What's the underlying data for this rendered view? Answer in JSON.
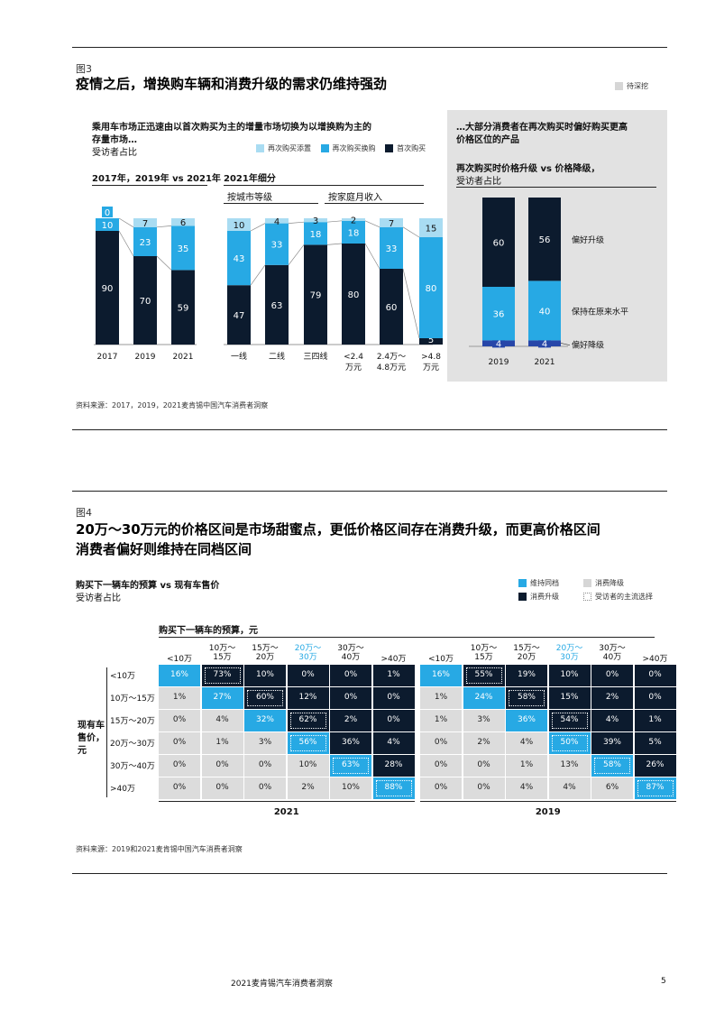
{
  "colors": {
    "light": "#a9dcf2",
    "mid": "#27a9e4",
    "dark": "#0c1b2e",
    "gray": "#dcdcdc",
    "navy": "#2746a8"
  },
  "fig3": {
    "label": "图3",
    "title": "疫情之后，增换购车辆和消费升级的需求仍维持强劲",
    "tag": "待深挖",
    "left": {
      "heading_line1": "乘用车市场正迅速由以首次购买为主的增量市场切换为以增换购为主的",
      "heading_line2": "存量市场…",
      "subheading": "受访者占比",
      "legend": [
        "再次购买添置",
        "再次购买换购",
        "首次购买"
      ],
      "group1_title": "2017年，2019年 vs 2021年",
      "group2_title": "2021年细分",
      "sub_city": "按城市等级",
      "sub_income": "按家庭月收入"
    },
    "right": {
      "heading_line1": "…大部分消费者在再次购买时偏好购买更高",
      "heading_line2": "价格区位的产品",
      "sub_line1": "再次购买时价格升级 vs 价格降级，",
      "sub_line2": "受访者占比",
      "labels": [
        "偏好升级",
        "保持在原来水平",
        "偏好降级"
      ]
    },
    "source": "资料来源：2017，2019，2021麦肯锡中国汽车消费者洞察"
  },
  "fig4": {
    "label": "图4",
    "title_line1": "20万～30万元的价格区间是市场甜蜜点，更低价格区间存在消费升级，而更高价格区间",
    "title_line2": "消费者偏好则维持在同档区间",
    "heading": "购买下一辆车的预算 vs 现有车售价",
    "subheading": "受访者占比",
    "legend": [
      "维持同档",
      "消费降级",
      "消费升级",
      "受访者的主流选择"
    ],
    "budget_title": "购买下一辆车的预算，元",
    "row_axis_label": [
      "现有车",
      "售价，",
      "元"
    ],
    "col_heads": [
      [
        "<10万",
        ""
      ],
      [
        "10万～",
        "15万"
      ],
      [
        "15万～",
        "20万"
      ],
      [
        "20万～",
        "30万"
      ],
      [
        "30万～",
        "40万"
      ],
      [
        ">40万",
        ""
      ]
    ],
    "row_heads": [
      "<10万",
      "10万～15万",
      "15万～20万",
      "20万～30万",
      "30万～40万",
      ">40万"
    ],
    "panel1_year": "2021",
    "panel2_year": "2019",
    "source": "资料来源：2019和2021麦肯锡中国汽车消费者洞察"
  },
  "footer": {
    "text": "2021麦肯锡汽车消费者洞察",
    "page": "5"
  },
  "chart_data": [
    {
      "type": "bar",
      "title": "2017年，2019年 vs 2021年",
      "stacked": true,
      "categories": [
        "2017",
        "2019",
        "2021"
      ],
      "series": [
        {
          "name": "首次购买",
          "values": [
            90,
            70,
            59
          ]
        },
        {
          "name": "再次购买换购",
          "values": [
            10,
            23,
            35
          ]
        },
        {
          "name": "再次购买添置",
          "values": [
            0,
            7,
            6
          ]
        }
      ]
    },
    {
      "type": "bar",
      "title": "2021年细分",
      "stacked": true,
      "categories": [
        "一线",
        "二线",
        "三四线",
        "<2.4万元",
        "2.4万～4.8万元",
        ">4.8万元"
      ],
      "series": [
        {
          "name": "首次购买",
          "values": [
            47,
            63,
            79,
            80,
            60,
            5
          ]
        },
        {
          "name": "再次购买换购",
          "values": [
            43,
            33,
            18,
            18,
            33,
            80
          ]
        },
        {
          "name": "再次购买添置",
          "values": [
            10,
            4,
            3,
            2,
            7,
            15
          ]
        }
      ]
    },
    {
      "type": "bar",
      "title": "再次购买时价格升级 vs 价格降级，",
      "stacked": true,
      "categories": [
        "2019",
        "2021"
      ],
      "series": [
        {
          "name": "偏好降级",
          "values": [
            4,
            4
          ]
        },
        {
          "name": "保持在原来水平",
          "values": [
            36,
            40
          ]
        },
        {
          "name": "偏好升级",
          "values": [
            60,
            56
          ]
        }
      ]
    },
    {
      "type": "heatmap",
      "title": "2021",
      "rows": [
        "<10万",
        "10万～15万",
        "15万～20万",
        "20万～30万",
        "30万～40万",
        ">40万"
      ],
      "columns": [
        "<10万",
        "10万～15万",
        "15万～20万",
        "20万～30万",
        "30万～40万",
        ">40万"
      ],
      "values": [
        [
          16,
          73,
          10,
          0,
          0,
          1
        ],
        [
          1,
          27,
          60,
          12,
          0,
          0
        ],
        [
          0,
          4,
          32,
          62,
          2,
          0
        ],
        [
          0,
          1,
          3,
          56,
          36,
          4
        ],
        [
          0,
          0,
          0,
          10,
          63,
          28
        ],
        [
          0,
          0,
          0,
          2,
          10,
          88
        ]
      ],
      "mainstream": [
        [
          0,
          1
        ],
        [
          1,
          2
        ],
        [
          2,
          3
        ],
        [
          3,
          3
        ],
        [
          4,
          4
        ],
        [
          5,
          5
        ]
      ]
    },
    {
      "type": "heatmap",
      "title": "2019",
      "rows": [
        "<10万",
        "10万～15万",
        "15万～20万",
        "20万～30万",
        "30万～40万",
        ">40万"
      ],
      "columns": [
        "<10万",
        "10万～15万",
        "15万～20万",
        "20万～30万",
        "30万～40万",
        ">40万"
      ],
      "values": [
        [
          16,
          55,
          19,
          10,
          0,
          0
        ],
        [
          1,
          24,
          58,
          15,
          2,
          0
        ],
        [
          1,
          3,
          36,
          54,
          4,
          1
        ],
        [
          0,
          2,
          4,
          50,
          39,
          5
        ],
        [
          0,
          0,
          1,
          13,
          58,
          26
        ],
        [
          0,
          0,
          4,
          4,
          6,
          87
        ]
      ],
      "mainstream": [
        [
          0,
          1
        ],
        [
          1,
          2
        ],
        [
          2,
          3
        ],
        [
          3,
          3
        ],
        [
          4,
          4
        ],
        [
          5,
          5
        ]
      ]
    }
  ]
}
